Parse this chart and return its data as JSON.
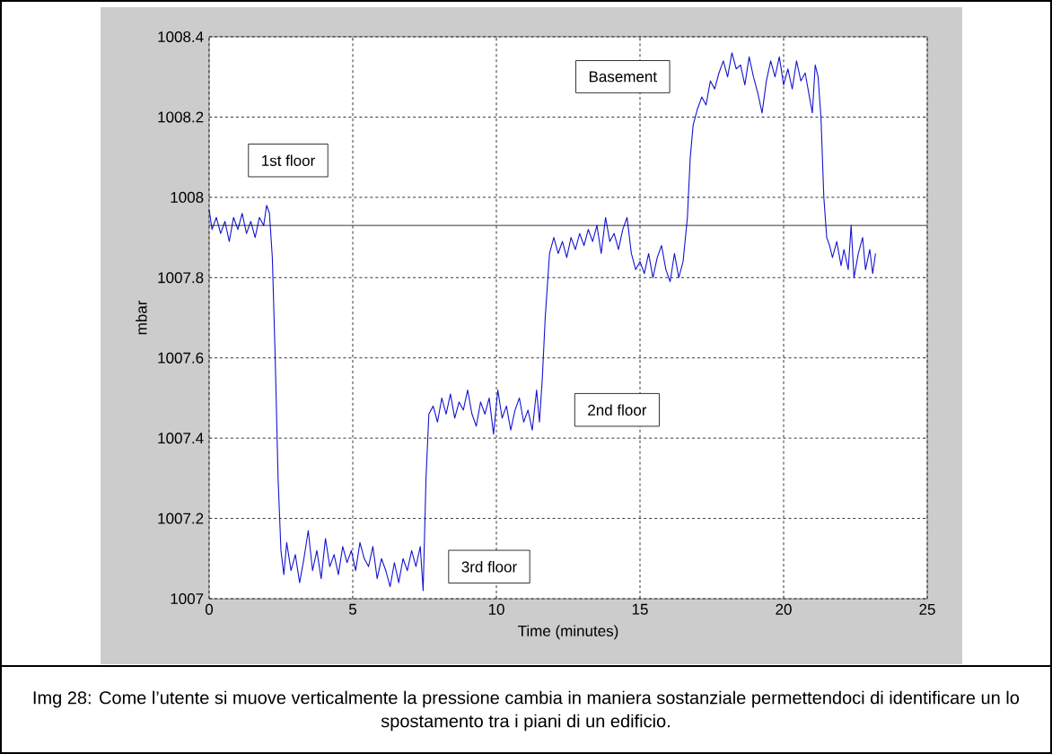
{
  "chart_data": {
    "type": "line",
    "xlabel": "Time (minutes)",
    "ylabel": "mbar",
    "xlim": [
      0,
      25
    ],
    "ylim": [
      1007,
      1008.4
    ],
    "xticks": [
      0,
      5,
      10,
      15,
      20,
      25
    ],
    "yticks": [
      1007,
      1007.2,
      1007.4,
      1007.6,
      1007.8,
      1008,
      1008.2,
      1008.4
    ],
    "grid": true,
    "marker": "none",
    "line_style": "solid",
    "x": [
      0,
      0.1,
      0.25,
      0.4,
      0.55,
      0.7,
      0.85,
      1.0,
      1.15,
      1.3,
      1.45,
      1.6,
      1.75,
      1.9,
      2.0,
      2.1,
      2.2,
      2.3,
      2.4,
      2.5,
      2.6,
      2.7,
      2.85,
      3.0,
      3.15,
      3.3,
      3.45,
      3.6,
      3.75,
      3.9,
      4.05,
      4.2,
      4.35,
      4.5,
      4.65,
      4.8,
      4.95,
      5.1,
      5.25,
      5.4,
      5.55,
      5.7,
      5.85,
      6.0,
      6.15,
      6.3,
      6.45,
      6.6,
      6.75,
      6.9,
      7.05,
      7.2,
      7.35,
      7.45,
      7.55,
      7.65,
      7.8,
      7.95,
      8.1,
      8.25,
      8.4,
      8.55,
      8.7,
      8.85,
      9.0,
      9.15,
      9.3,
      9.45,
      9.6,
      9.75,
      9.9,
      10.05,
      10.2,
      10.35,
      10.5,
      10.65,
      10.8,
      10.95,
      11.1,
      11.25,
      11.4,
      11.5,
      11.6,
      11.7,
      11.85,
      12.0,
      12.15,
      12.3,
      12.45,
      12.6,
      12.75,
      12.9,
      13.05,
      13.2,
      13.35,
      13.5,
      13.65,
      13.8,
      13.95,
      14.1,
      14.25,
      14.4,
      14.55,
      14.7,
      14.85,
      15.0,
      15.15,
      15.3,
      15.45,
      15.6,
      15.75,
      15.9,
      16.05,
      16.2,
      16.35,
      16.5,
      16.65,
      16.75,
      16.85,
      17.0,
      17.15,
      17.3,
      17.45,
      17.6,
      17.75,
      17.9,
      18.05,
      18.2,
      18.35,
      18.5,
      18.65,
      18.8,
      18.95,
      19.1,
      19.25,
      19.4,
      19.55,
      19.7,
      19.85,
      20.0,
      20.15,
      20.3,
      20.45,
      20.6,
      20.75,
      20.9,
      21.0,
      21.1,
      21.2,
      21.3,
      21.4,
      21.5,
      21.6,
      21.7,
      21.85,
      22.0,
      22.1,
      22.25,
      22.35,
      22.45,
      22.6,
      22.75,
      22.85,
      23.0,
      23.1,
      23.2
    ],
    "series": [
      {
        "color": "#1414d2",
        "values": [
          1007.97,
          1007.92,
          1007.95,
          1007.91,
          1007.94,
          1007.89,
          1007.95,
          1007.92,
          1007.96,
          1007.91,
          1007.94,
          1007.9,
          1007.95,
          1007.93,
          1007.98,
          1007.96,
          1007.85,
          1007.6,
          1007.3,
          1007.12,
          1007.06,
          1007.14,
          1007.07,
          1007.11,
          1007.04,
          1007.1,
          1007.17,
          1007.07,
          1007.12,
          1007.05,
          1007.15,
          1007.08,
          1007.11,
          1007.06,
          1007.13,
          1007.09,
          1007.12,
          1007.07,
          1007.14,
          1007.1,
          1007.08,
          1007.13,
          1007.05,
          1007.1,
          1007.07,
          1007.03,
          1007.09,
          1007.04,
          1007.1,
          1007.07,
          1007.12,
          1007.08,
          1007.13,
          1007.02,
          1007.3,
          1007.46,
          1007.48,
          1007.44,
          1007.5,
          1007.46,
          1007.51,
          1007.45,
          1007.49,
          1007.47,
          1007.52,
          1007.46,
          1007.43,
          1007.49,
          1007.46,
          1007.5,
          1007.41,
          1007.52,
          1007.45,
          1007.48,
          1007.42,
          1007.47,
          1007.5,
          1007.44,
          1007.47,
          1007.42,
          1007.52,
          1007.44,
          1007.55,
          1007.7,
          1007.86,
          1007.9,
          1007.86,
          1007.89,
          1007.85,
          1007.9,
          1007.87,
          1007.91,
          1007.88,
          1007.92,
          1007.89,
          1007.93,
          1007.86,
          1007.95,
          1007.89,
          1007.91,
          1007.87,
          1007.92,
          1007.95,
          1007.86,
          1007.82,
          1007.84,
          1007.81,
          1007.86,
          1007.8,
          1007.85,
          1007.88,
          1007.82,
          1007.79,
          1007.86,
          1007.8,
          1007.84,
          1007.95,
          1008.1,
          1008.18,
          1008.22,
          1008.25,
          1008.23,
          1008.29,
          1008.27,
          1008.31,
          1008.34,
          1008.3,
          1008.36,
          1008.32,
          1008.33,
          1008.28,
          1008.35,
          1008.3,
          1008.26,
          1008.21,
          1008.29,
          1008.34,
          1008.3,
          1008.35,
          1008.28,
          1008.32,
          1008.27,
          1008.34,
          1008.29,
          1008.31,
          1008.25,
          1008.21,
          1008.33,
          1008.3,
          1008.2,
          1008.0,
          1007.9,
          1007.88,
          1007.85,
          1007.89,
          1007.83,
          1007.87,
          1007.82,
          1007.93,
          1007.8,
          1007.86,
          1007.9,
          1007.82,
          1007.87,
          1007.81,
          1007.86
        ]
      }
    ],
    "ref_lines": [
      {
        "axis": "y",
        "value": 1007.93,
        "color": "#000000",
        "line_style": "solid"
      }
    ],
    "annotations": [
      "1st floor",
      "Basement",
      "2nd floor",
      "3rd floor",
      "Img 28: Come l’utente si muove verticalmente la pressione cambia in maniera sostanziale permettendoci di identificare un lo spostamento tra i piani di un edificio."
    ]
  }
}
